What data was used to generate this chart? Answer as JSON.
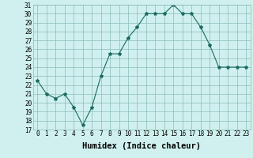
{
  "x": [
    0,
    1,
    2,
    3,
    4,
    5,
    6,
    7,
    8,
    9,
    10,
    11,
    12,
    13,
    14,
    15,
    16,
    17,
    18,
    19,
    20,
    21,
    22,
    23
  ],
  "y": [
    22.5,
    21.0,
    20.5,
    21.0,
    19.5,
    17.5,
    19.5,
    23.0,
    25.5,
    25.5,
    27.3,
    28.5,
    30.0,
    30.0,
    30.0,
    31.0,
    30.0,
    30.0,
    28.5,
    26.5,
    24.0,
    24.0,
    24.0,
    24.0
  ],
  "line_color": "#1a6b5e",
  "marker": "*",
  "marker_size": 3,
  "xlabel": "Humidex (Indice chaleur)",
  "ylim": [
    17,
    31
  ],
  "xlim": [
    -0.5,
    23.5
  ],
  "yticks": [
    17,
    18,
    19,
    20,
    21,
    22,
    23,
    24,
    25,
    26,
    27,
    28,
    29,
    30,
    31
  ],
  "xticks": [
    0,
    1,
    2,
    3,
    4,
    5,
    6,
    7,
    8,
    9,
    10,
    11,
    12,
    13,
    14,
    15,
    16,
    17,
    18,
    19,
    20,
    21,
    22,
    23
  ],
  "background_color": "#cff0ee",
  "grid_color": "#8bbcb8",
  "tick_fontsize": 5.5,
  "xlabel_fontsize": 7.5
}
